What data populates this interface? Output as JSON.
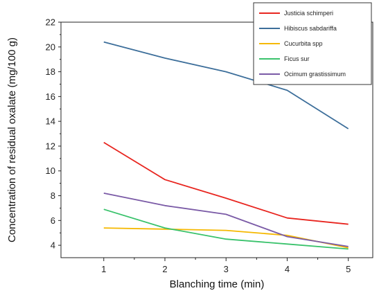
{
  "chart_data": {
    "type": "line",
    "title": "",
    "xlabel": "Blanching time (min)",
    "ylabel": "Concentration of residual oxalate (mg/100 g)",
    "x": [
      1,
      2,
      3,
      4,
      5
    ],
    "xlim": [
      0.3,
      5.4
    ],
    "ylim": [
      3,
      22
    ],
    "xticks": [
      "1",
      "2",
      "3",
      "4",
      "5"
    ],
    "yticks": [
      "4",
      "6",
      "8",
      "10",
      "12",
      "14",
      "16",
      "18",
      "20",
      "22"
    ],
    "grid": false,
    "legend_position": "top-right",
    "series": [
      {
        "name": "Justicia schimperi",
        "color": "#e8251f",
        "values": [
          12.3,
          9.3,
          7.8,
          6.2,
          5.7
        ]
      },
      {
        "name": "Hibiscus sabdariffa",
        "color": "#3c6e9a",
        "values": [
          20.4,
          19.1,
          18.0,
          16.5,
          13.4
        ]
      },
      {
        "name": "Cucurbita spp",
        "color": "#f5b800",
        "values": [
          5.4,
          5.3,
          5.2,
          4.8,
          3.8
        ]
      },
      {
        "name": "Ficus sur",
        "color": "#39c26b",
        "values": [
          6.9,
          5.4,
          4.5,
          4.1,
          3.7
        ]
      },
      {
        "name": "Ocimum grastissimum",
        "color": "#7a5aa6",
        "values": [
          8.2,
          7.2,
          6.5,
          4.7,
          3.9
        ]
      }
    ]
  }
}
